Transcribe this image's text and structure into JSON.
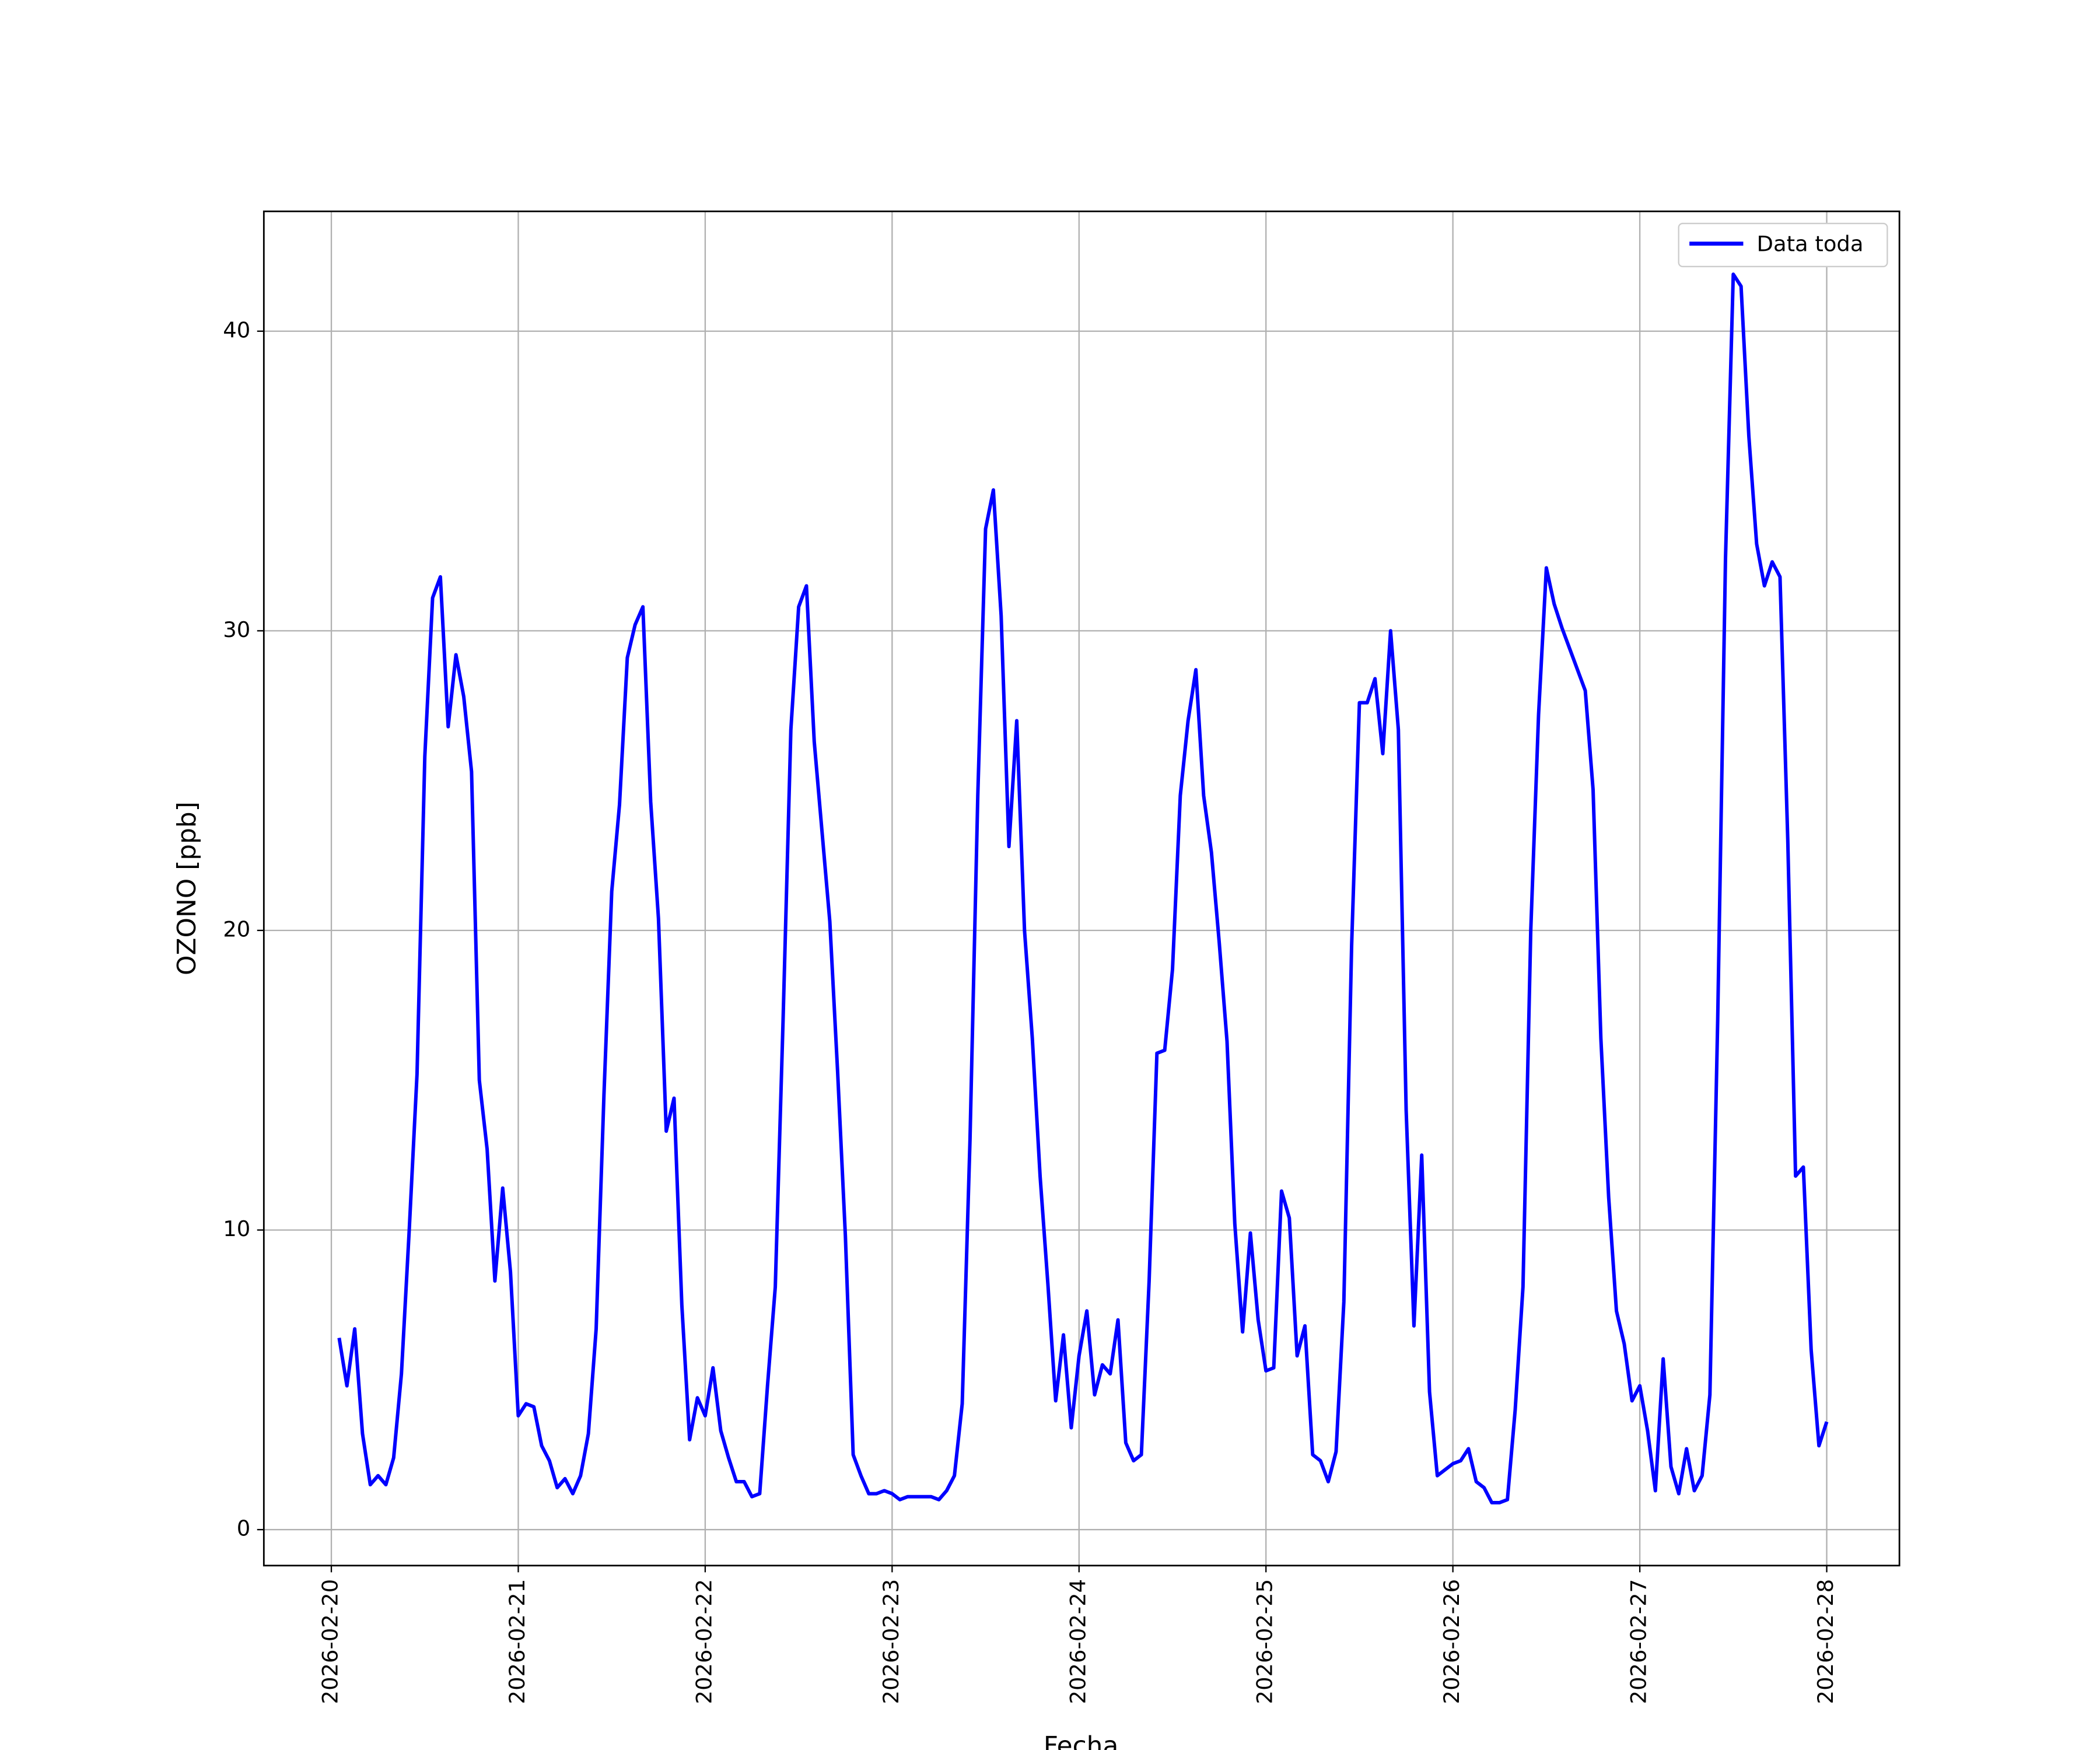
{
  "chart_data": {
    "type": "line",
    "xlabel": "Fecha",
    "ylabel": "OZONO [ppb]",
    "x": [
      "2026-02-20T01:00",
      "2026-02-20T02:00",
      "2026-02-20T03:00",
      "2026-02-20T04:00",
      "2026-02-20T05:00",
      "2026-02-20T06:00",
      "2026-02-20T07:00",
      "2026-02-20T08:00",
      "2026-02-20T09:00",
      "2026-02-20T10:00",
      "2026-02-20T11:00",
      "2026-02-20T12:00",
      "2026-02-20T13:00",
      "2026-02-20T14:00",
      "2026-02-20T15:00",
      "2026-02-20T16:00",
      "2026-02-20T17:00",
      "2026-02-20T18:00",
      "2026-02-20T19:00",
      "2026-02-20T20:00",
      "2026-02-20T21:00",
      "2026-02-20T22:00",
      "2026-02-20T23:00",
      "2026-02-21T00:00",
      "2026-02-21T01:00",
      "2026-02-21T02:00",
      "2026-02-21T03:00",
      "2026-02-21T04:00",
      "2026-02-21T05:00",
      "2026-02-21T06:00",
      "2026-02-21T07:00",
      "2026-02-21T08:00",
      "2026-02-21T09:00",
      "2026-02-21T10:00",
      "2026-02-21T11:00",
      "2026-02-21T12:00",
      "2026-02-21T13:00",
      "2026-02-21T14:00",
      "2026-02-21T15:00",
      "2026-02-21T16:00",
      "2026-02-21T17:00",
      "2026-02-21T18:00",
      "2026-02-21T19:00",
      "2026-02-21T20:00",
      "2026-02-21T21:00",
      "2026-02-21T22:00",
      "2026-02-21T23:00",
      "2026-02-22T00:00",
      "2026-02-22T01:00",
      "2026-02-22T02:00",
      "2026-02-22T03:00",
      "2026-02-22T04:00",
      "2026-02-22T05:00",
      "2026-02-22T06:00",
      "2026-02-22T07:00",
      "2026-02-22T08:00",
      "2026-02-22T09:00",
      "2026-02-22T10:00",
      "2026-02-22T11:00",
      "2026-02-22T12:00",
      "2026-02-22T13:00",
      "2026-02-22T14:00",
      "2026-02-22T15:00",
      "2026-02-22T16:00",
      "2026-02-22T17:00",
      "2026-02-22T18:00",
      "2026-02-22T19:00",
      "2026-02-22T20:00",
      "2026-02-22T21:00",
      "2026-02-22T22:00",
      "2026-02-22T23:00",
      "2026-02-23T00:00",
      "2026-02-23T01:00",
      "2026-02-23T02:00",
      "2026-02-23T03:00",
      "2026-02-23T04:00",
      "2026-02-23T05:00",
      "2026-02-23T06:00",
      "2026-02-23T07:00",
      "2026-02-23T08:00",
      "2026-02-23T09:00",
      "2026-02-23T10:00",
      "2026-02-23T11:00",
      "2026-02-23T12:00",
      "2026-02-23T13:00",
      "2026-02-23T14:00",
      "2026-02-23T15:00",
      "2026-02-23T16:00",
      "2026-02-23T17:00",
      "2026-02-23T18:00",
      "2026-02-23T19:00",
      "2026-02-23T20:00",
      "2026-02-23T21:00",
      "2026-02-23T22:00",
      "2026-02-23T23:00",
      "2026-02-24T00:00",
      "2026-02-24T01:00",
      "2026-02-24T02:00",
      "2026-02-24T03:00",
      "2026-02-24T04:00",
      "2026-02-24T05:00",
      "2026-02-24T06:00",
      "2026-02-24T07:00",
      "2026-02-24T08:00",
      "2026-02-24T09:00",
      "2026-02-24T10:00",
      "2026-02-24T11:00",
      "2026-02-24T12:00",
      "2026-02-24T13:00",
      "2026-02-24T14:00",
      "2026-02-24T15:00",
      "2026-02-24T16:00",
      "2026-02-24T17:00",
      "2026-02-24T18:00",
      "2026-02-24T19:00",
      "2026-02-24T20:00",
      "2026-02-24T21:00",
      "2026-02-24T22:00",
      "2026-02-24T23:00",
      "2026-02-25T00:00",
      "2026-02-25T01:00",
      "2026-02-25T02:00",
      "2026-02-25T03:00",
      "2026-02-25T04:00",
      "2026-02-25T05:00",
      "2026-02-25T06:00",
      "2026-02-25T07:00",
      "2026-02-25T08:00",
      "2026-02-25T09:00",
      "2026-02-25T10:00",
      "2026-02-25T11:00",
      "2026-02-25T12:00",
      "2026-02-25T13:00",
      "2026-02-25T14:00",
      "2026-02-25T15:00",
      "2026-02-25T16:00",
      "2026-02-25T17:00",
      "2026-02-25T18:00",
      "2026-02-25T19:00",
      "2026-02-25T20:00",
      "2026-02-25T21:00",
      "2026-02-25T22:00",
      "2026-02-25T23:00",
      "2026-02-26T00:00",
      "2026-02-26T01:00",
      "2026-02-26T02:00",
      "2026-02-26T03:00",
      "2026-02-26T04:00",
      "2026-02-26T05:00",
      "2026-02-26T06:00",
      "2026-02-26T07:00",
      "2026-02-26T08:00",
      "2026-02-26T09:00",
      "2026-02-26T10:00",
      "2026-02-26T11:00",
      "2026-02-26T12:00",
      "2026-02-26T13:00",
      "2026-02-26T14:00",
      "2026-02-26T15:00",
      "2026-02-26T16:00",
      "2026-02-26T17:00",
      "2026-02-26T18:00",
      "2026-02-26T19:00",
      "2026-02-26T20:00",
      "2026-02-26T21:00",
      "2026-02-26T22:00",
      "2026-02-26T23:00",
      "2026-02-27T00:00",
      "2026-02-27T01:00",
      "2026-02-27T02:00",
      "2026-02-27T03:00",
      "2026-02-27T04:00",
      "2026-02-27T05:00",
      "2026-02-27T06:00",
      "2026-02-27T07:00",
      "2026-02-27T08:00",
      "2026-02-27T09:00",
      "2026-02-27T10:00",
      "2026-02-27T11:00",
      "2026-02-27T12:00",
      "2026-02-27T13:00",
      "2026-02-27T14:00",
      "2026-02-27T15:00",
      "2026-02-27T16:00",
      "2026-02-27T17:00",
      "2026-02-27T18:00",
      "2026-02-27T19:00",
      "2026-02-27T20:00",
      "2026-02-27T21:00",
      "2026-02-27T22:00",
      "2026-02-27T23:00",
      "2026-02-28T00:00"
    ],
    "series": [
      {
        "name": "Data toda",
        "color": "#0000ff",
        "values": [
          6.4,
          4.8,
          6.7,
          3.2,
          1.5,
          1.8,
          1.5,
          2.4,
          5.2,
          10,
          15.2,
          25.8,
          31.1,
          31.8,
          26.8,
          29.2,
          27.8,
          25.3,
          15,
          12.7,
          8.3,
          11.4,
          8.6,
          3.8,
          4.2,
          4.1,
          2.8,
          2.3,
          1.4,
          1.7,
          1.2,
          1.8,
          3.2,
          6.7,
          14.5,
          21.3,
          24.2,
          29.1,
          30.2,
          30.8,
          24.3,
          20.4,
          13.3,
          14.4,
          7.5,
          3,
          4.4,
          3.8,
          5.4,
          3.3,
          2.4,
          1.6,
          1.6,
          1.1,
          1.2,
          4.8,
          8.1,
          17,
          26.7,
          30.8,
          31.5,
          26.3,
          23.3,
          20.3,
          15.3,
          9.8,
          2.5,
          1.8,
          1.2,
          1.2,
          1.3,
          1.2,
          1.0,
          1.1,
          1.1,
          1.1,
          1.1,
          1.0,
          1.3,
          1.8,
          4.2,
          13,
          24.5,
          33.4,
          34.7,
          30.5,
          22.8,
          27,
          20,
          16.4,
          11.8,
          8.2,
          4.3,
          6.5,
          3.4,
          5.8,
          7.3,
          4.5,
          5.5,
          5.2,
          7,
          2.9,
          2.3,
          2.5,
          8.3,
          15.9,
          16,
          18.7,
          24.5,
          27,
          28.7,
          24.5,
          22.6,
          19.6,
          16.3,
          10.2,
          6.6,
          9.9,
          7,
          5.3,
          5.4,
          11.3,
          10.4,
          5.8,
          6.8,
          2.5,
          2.3,
          1.6,
          2.6,
          7.6,
          19.5,
          27.6,
          27.6,
          28.4,
          25.9,
          30,
          26.7,
          14,
          6.8,
          12.5,
          4.6,
          1.8,
          2,
          2.2,
          2.3,
          2.7,
          1.6,
          1.4,
          0.9,
          0.9,
          1,
          4,
          8.1,
          20,
          27.2,
          32.1,
          30.9,
          30.1,
          29.4,
          28.7,
          28,
          24.7,
          16.4,
          11.1,
          7.3,
          6.2,
          4.3,
          4.8,
          3.3,
          1.3,
          5.7,
          2.1,
          1.2,
          2.7,
          1.3,
          1.8,
          4.5,
          17,
          32.4,
          41.9,
          41.5,
          36.5,
          32.9,
          31.5,
          32.3,
          31.8,
          23,
          11.8,
          12.1,
          6,
          2.8,
          3.6
        ]
      }
    ],
    "xlim": [
      "2026-02-19T15:20",
      "2026-02-28T09:20"
    ],
    "xticks": [
      "2026-02-20",
      "2026-02-21",
      "2026-02-22",
      "2026-02-23",
      "2026-02-24",
      "2026-02-25",
      "2026-02-26",
      "2026-02-27",
      "2026-02-28"
    ],
    "ylim": [
      -1.2,
      44
    ],
    "yticks": [
      0,
      10,
      20,
      30,
      40
    ],
    "grid": true,
    "legend": "upper right"
  }
}
